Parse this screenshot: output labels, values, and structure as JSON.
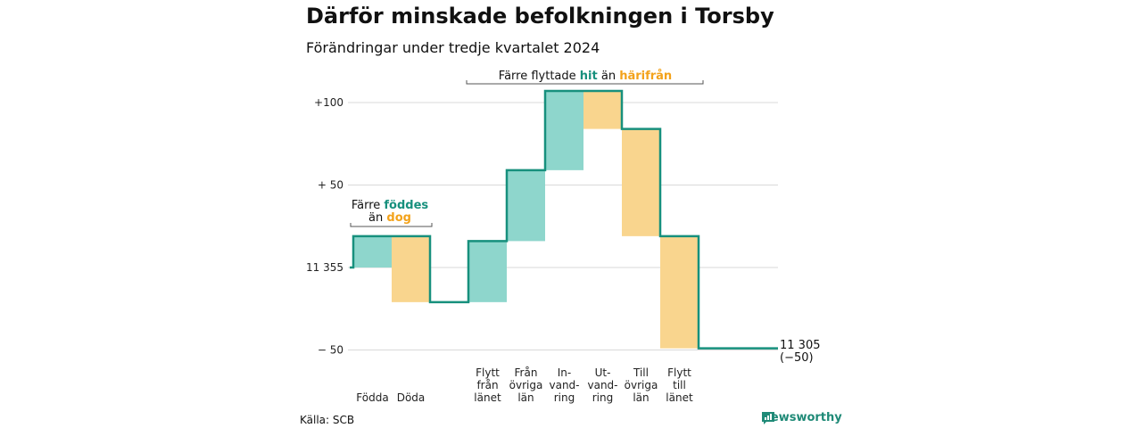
{
  "header": {
    "title": "Därför minskade befolkningen i Torsby",
    "subtitle": "Förändringar under tredje kvartalet 2024"
  },
  "annotations": {
    "births": {
      "line1_prefix": "Färre ",
      "line1_highlight": "föddes",
      "line2_prefix": "än ",
      "line2_highlight": "dog"
    },
    "migration": {
      "prefix": "Färre flyttade ",
      "highlight1": "hit",
      "middle": " än ",
      "highlight2": "härifrån"
    }
  },
  "end_label": {
    "value": "11 305",
    "change": "(−50)"
  },
  "footer": {
    "source": "Källa: SCB",
    "brand": "Newsworthy"
  },
  "colors": {
    "increase": "#8ed6cc",
    "decrease": "#f9d58e",
    "line": "#17907d",
    "grid": "#d9d9d9",
    "hit": "#17907d",
    "harifran": "#f3a21a"
  },
  "chart_data": {
    "type": "waterfall",
    "start": 11355,
    "end": 11305,
    "change": -50,
    "y_ticks": [
      {
        "value": 100,
        "label": "+100"
      },
      {
        "value": 50,
        "label": "+ 50"
      },
      {
        "value": 0,
        "label": "11 355"
      },
      {
        "value": -50,
        "label": "−  50"
      }
    ],
    "ylim": [
      -50,
      100
    ],
    "steps": [
      {
        "label": [
          "Födda"
        ],
        "delta": 19
      },
      {
        "label": [
          "Döda"
        ],
        "delta": -40
      },
      {
        "label": [
          "Flytt",
          "från",
          "länet"
        ],
        "delta": 37
      },
      {
        "label": [
          "Från",
          "övriga",
          "län"
        ],
        "delta": 43
      },
      {
        "label": [
          "In-",
          "vand-",
          "ring"
        ],
        "delta": 48
      },
      {
        "label": [
          "Ut-",
          "vand-",
          "ring"
        ],
        "delta": -23
      },
      {
        "label": [
          "Till",
          "övriga",
          "län"
        ],
        "delta": -65
      },
      {
        "label": [
          "Flytt",
          "till",
          "länet"
        ],
        "delta": -68
      }
    ]
  }
}
